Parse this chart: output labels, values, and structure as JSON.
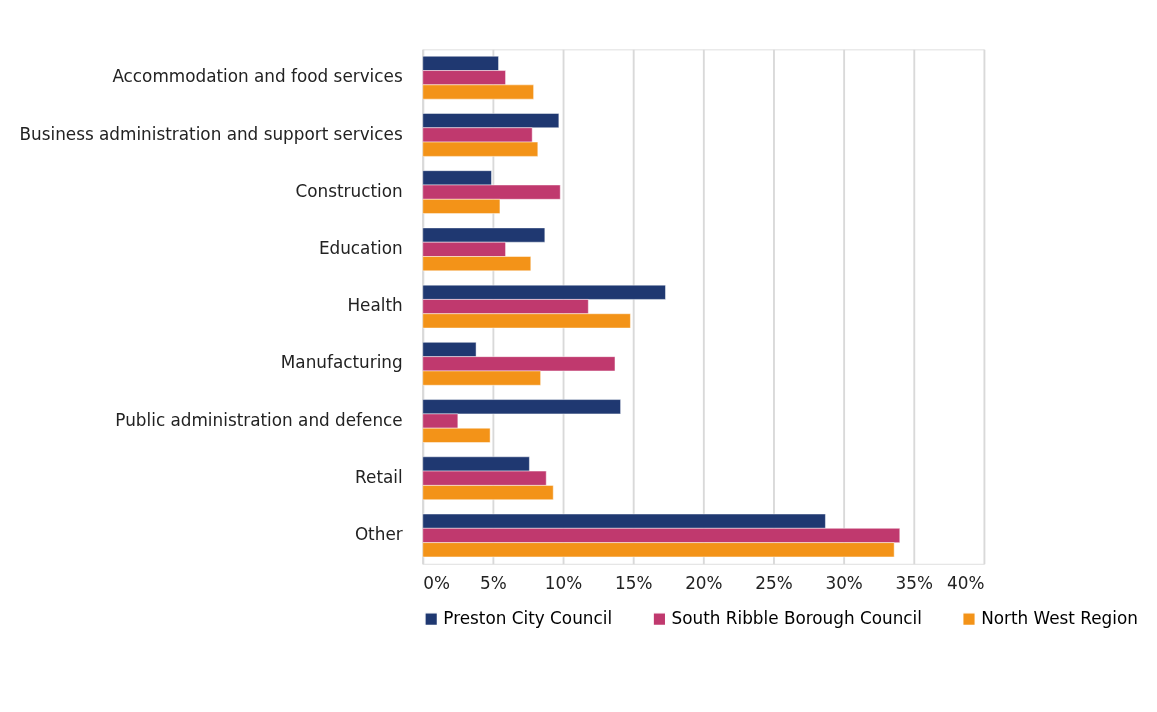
{
  "chart_data": {
    "type": "bar",
    "orientation": "horizontal",
    "categories": [
      "Accommodation and food services",
      "Business administration and support services",
      "Construction",
      "Education",
      "Health",
      "Manufacturing",
      "Public administration and defence",
      "Retail",
      "Other"
    ],
    "series": [
      {
        "name": "Preston City Council",
        "color": "#1f3871",
        "values": [
          5.4,
          9.7,
          4.9,
          8.7,
          17.3,
          3.8,
          14.1,
          7.6,
          28.7
        ]
      },
      {
        "name": "South Ribble Borough Council",
        "color": "#c0396e",
        "values": [
          5.9,
          7.8,
          9.8,
          5.9,
          11.8,
          13.7,
          2.5,
          8.8,
          34.0
        ]
      },
      {
        "name": "North West Region",
        "color": "#f39318",
        "values": [
          7.9,
          8.2,
          5.5,
          7.7,
          14.8,
          8.4,
          4.8,
          9.3,
          33.6
        ]
      }
    ],
    "xlim": [
      0,
      40
    ],
    "xticks": [
      {
        "value": 0,
        "label": "0%"
      },
      {
        "value": 5,
        "label": "5%"
      },
      {
        "value": 10,
        "label": "10%"
      },
      {
        "value": 15,
        "label": "15%"
      },
      {
        "value": 20,
        "label": "20%"
      },
      {
        "value": 25,
        "label": "25%"
      },
      {
        "value": 30,
        "label": "30%"
      },
      {
        "value": 35,
        "label": "35%"
      },
      {
        "value": 40,
        "label": "40%"
      }
    ],
    "grid": "x",
    "legend": "bottom"
  }
}
